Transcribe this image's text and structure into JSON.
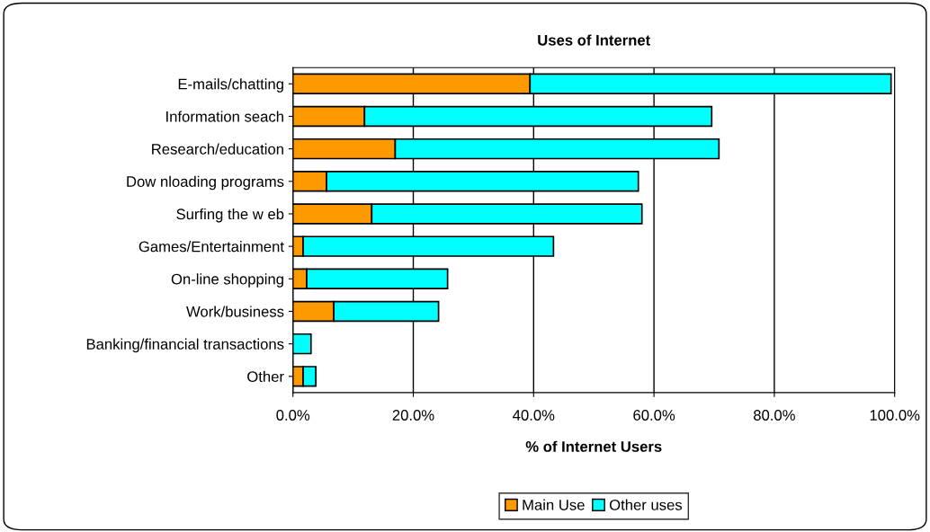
{
  "chart_data": {
    "type": "bar",
    "orientation": "horizontal",
    "stacked": true,
    "title": "Uses of Internet",
    "xlabel": "% of Internet Users",
    "categories": [
      "E-mails/chatting",
      "Information seach",
      "Research/education",
      "Dow nloading programs",
      "Surfing the w eb",
      "Games/Entertainment",
      "On-line shopping",
      "Work/business",
      "Banking/financial transactions",
      "Other"
    ],
    "series": [
      {
        "name": "Main Use",
        "color": "#ff9900",
        "values": [
          39.4,
          11.9,
          17.0,
          5.6,
          13.1,
          1.7,
          2.3,
          6.8,
          0,
          1.7
        ]
      },
      {
        "name": "Other uses",
        "color": "#00ffff",
        "values": [
          60.0,
          57.7,
          53.8,
          51.8,
          44.9,
          41.6,
          23.4,
          17.4,
          3.0,
          2.1
        ]
      }
    ],
    "xlim": [
      0,
      100
    ],
    "xticks": [
      {
        "value": 0,
        "label": "0.0%"
      },
      {
        "value": 20,
        "label": "20.0%"
      },
      {
        "value": 40,
        "label": "40.0%"
      },
      {
        "value": 60,
        "label": "60.0%"
      },
      {
        "value": 80,
        "label": "80.0%"
      },
      {
        "value": 100,
        "label": "100.0%"
      }
    ],
    "grid": "x",
    "legend": "bottom"
  }
}
